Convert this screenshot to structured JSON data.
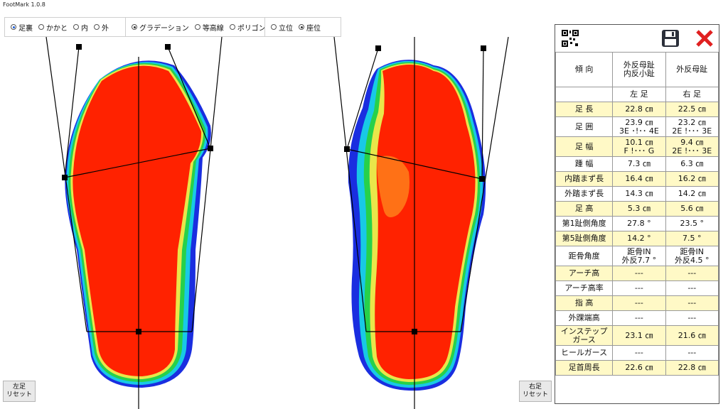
{
  "app": {
    "title": "FootMark 1.0.8"
  },
  "view_options": [
    {
      "label": "足裏",
      "selected": true
    },
    {
      "label": "かかと",
      "selected": false
    },
    {
      "label": "内",
      "selected": false
    },
    {
      "label": "外",
      "selected": false
    }
  ],
  "render_options": [
    {
      "label": "グラデーション",
      "selected": true
    },
    {
      "label": "等高線",
      "selected": false
    },
    {
      "label": "ポリゴン",
      "selected": false
    }
  ],
  "posture_options": [
    {
      "label": "立位",
      "selected": false
    },
    {
      "label": "座位",
      "selected": true
    }
  ],
  "panel": {
    "qr_icon": "qr-code-icon",
    "save_icon": "floppy-disk-icon",
    "close_icon": "red-x-icon",
    "header": {
      "label": "傾 向",
      "left": "外反母趾\n内反小趾",
      "right": "外反母趾"
    },
    "sides": {
      "label": "",
      "left": "左 足",
      "right": "右 足"
    },
    "rows": [
      {
        "label": "足 長",
        "left": "22.8 ㎝",
        "right": "22.5 ㎝",
        "hl": true
      },
      {
        "label": "足 囲",
        "left": "23.9 ㎝\n3E ･!･･ 4E",
        "right": "23.2 ㎝\n2E !･･･ 3E",
        "hl": false
      },
      {
        "label": "足 幅",
        "left": "10.1 ㎝\nF !･･･ G",
        "right": "9.4 ㎝\n2E !･･･ 3E",
        "hl": true
      },
      {
        "label": "踵 幅",
        "left": "7.3 ㎝",
        "right": "6.3 ㎝",
        "hl": false
      },
      {
        "label": "内踏まず長",
        "left": "16.4 ㎝",
        "right": "16.2 ㎝",
        "hl": true
      },
      {
        "label": "外踏まず長",
        "left": "14.3 ㎝",
        "right": "14.2 ㎝",
        "hl": false
      },
      {
        "label": "足 高",
        "left": "5.3 ㎝",
        "right": "5.6 ㎝",
        "hl": true
      },
      {
        "label": "第1趾側角度",
        "left": "27.8 °",
        "right": "23.5 °",
        "hl": false
      },
      {
        "label": "第5趾側角度",
        "left": "14.2 °",
        "right": "7.5 °",
        "hl": true
      },
      {
        "label": "距骨角度",
        "left": "距骨IN\n外反7.7 °",
        "right": "距骨IN\n外反4.5 °",
        "hl": false
      },
      {
        "label": "アーチ高",
        "left": "---",
        "right": "---",
        "hl": true
      },
      {
        "label": "アーチ高率",
        "left": "---",
        "right": "---",
        "hl": false
      },
      {
        "label": "指 高",
        "left": "---",
        "right": "---",
        "hl": true
      },
      {
        "label": "外踝端高",
        "left": "---",
        "right": "---",
        "hl": false
      },
      {
        "label": "インステップ\nガース",
        "left": "23.1 ㎝",
        "right": "21.6 ㎝",
        "hl": true
      },
      {
        "label": "ヒールガース",
        "left": "---",
        "right": "---",
        "hl": false
      },
      {
        "label": "足首周長",
        "left": "22.6 ㎝",
        "right": "22.8 ㎝",
        "hl": true
      }
    ]
  },
  "buttons": {
    "left_reset": "左足\nリセット",
    "right_reset": "右足\nリセット"
  }
}
